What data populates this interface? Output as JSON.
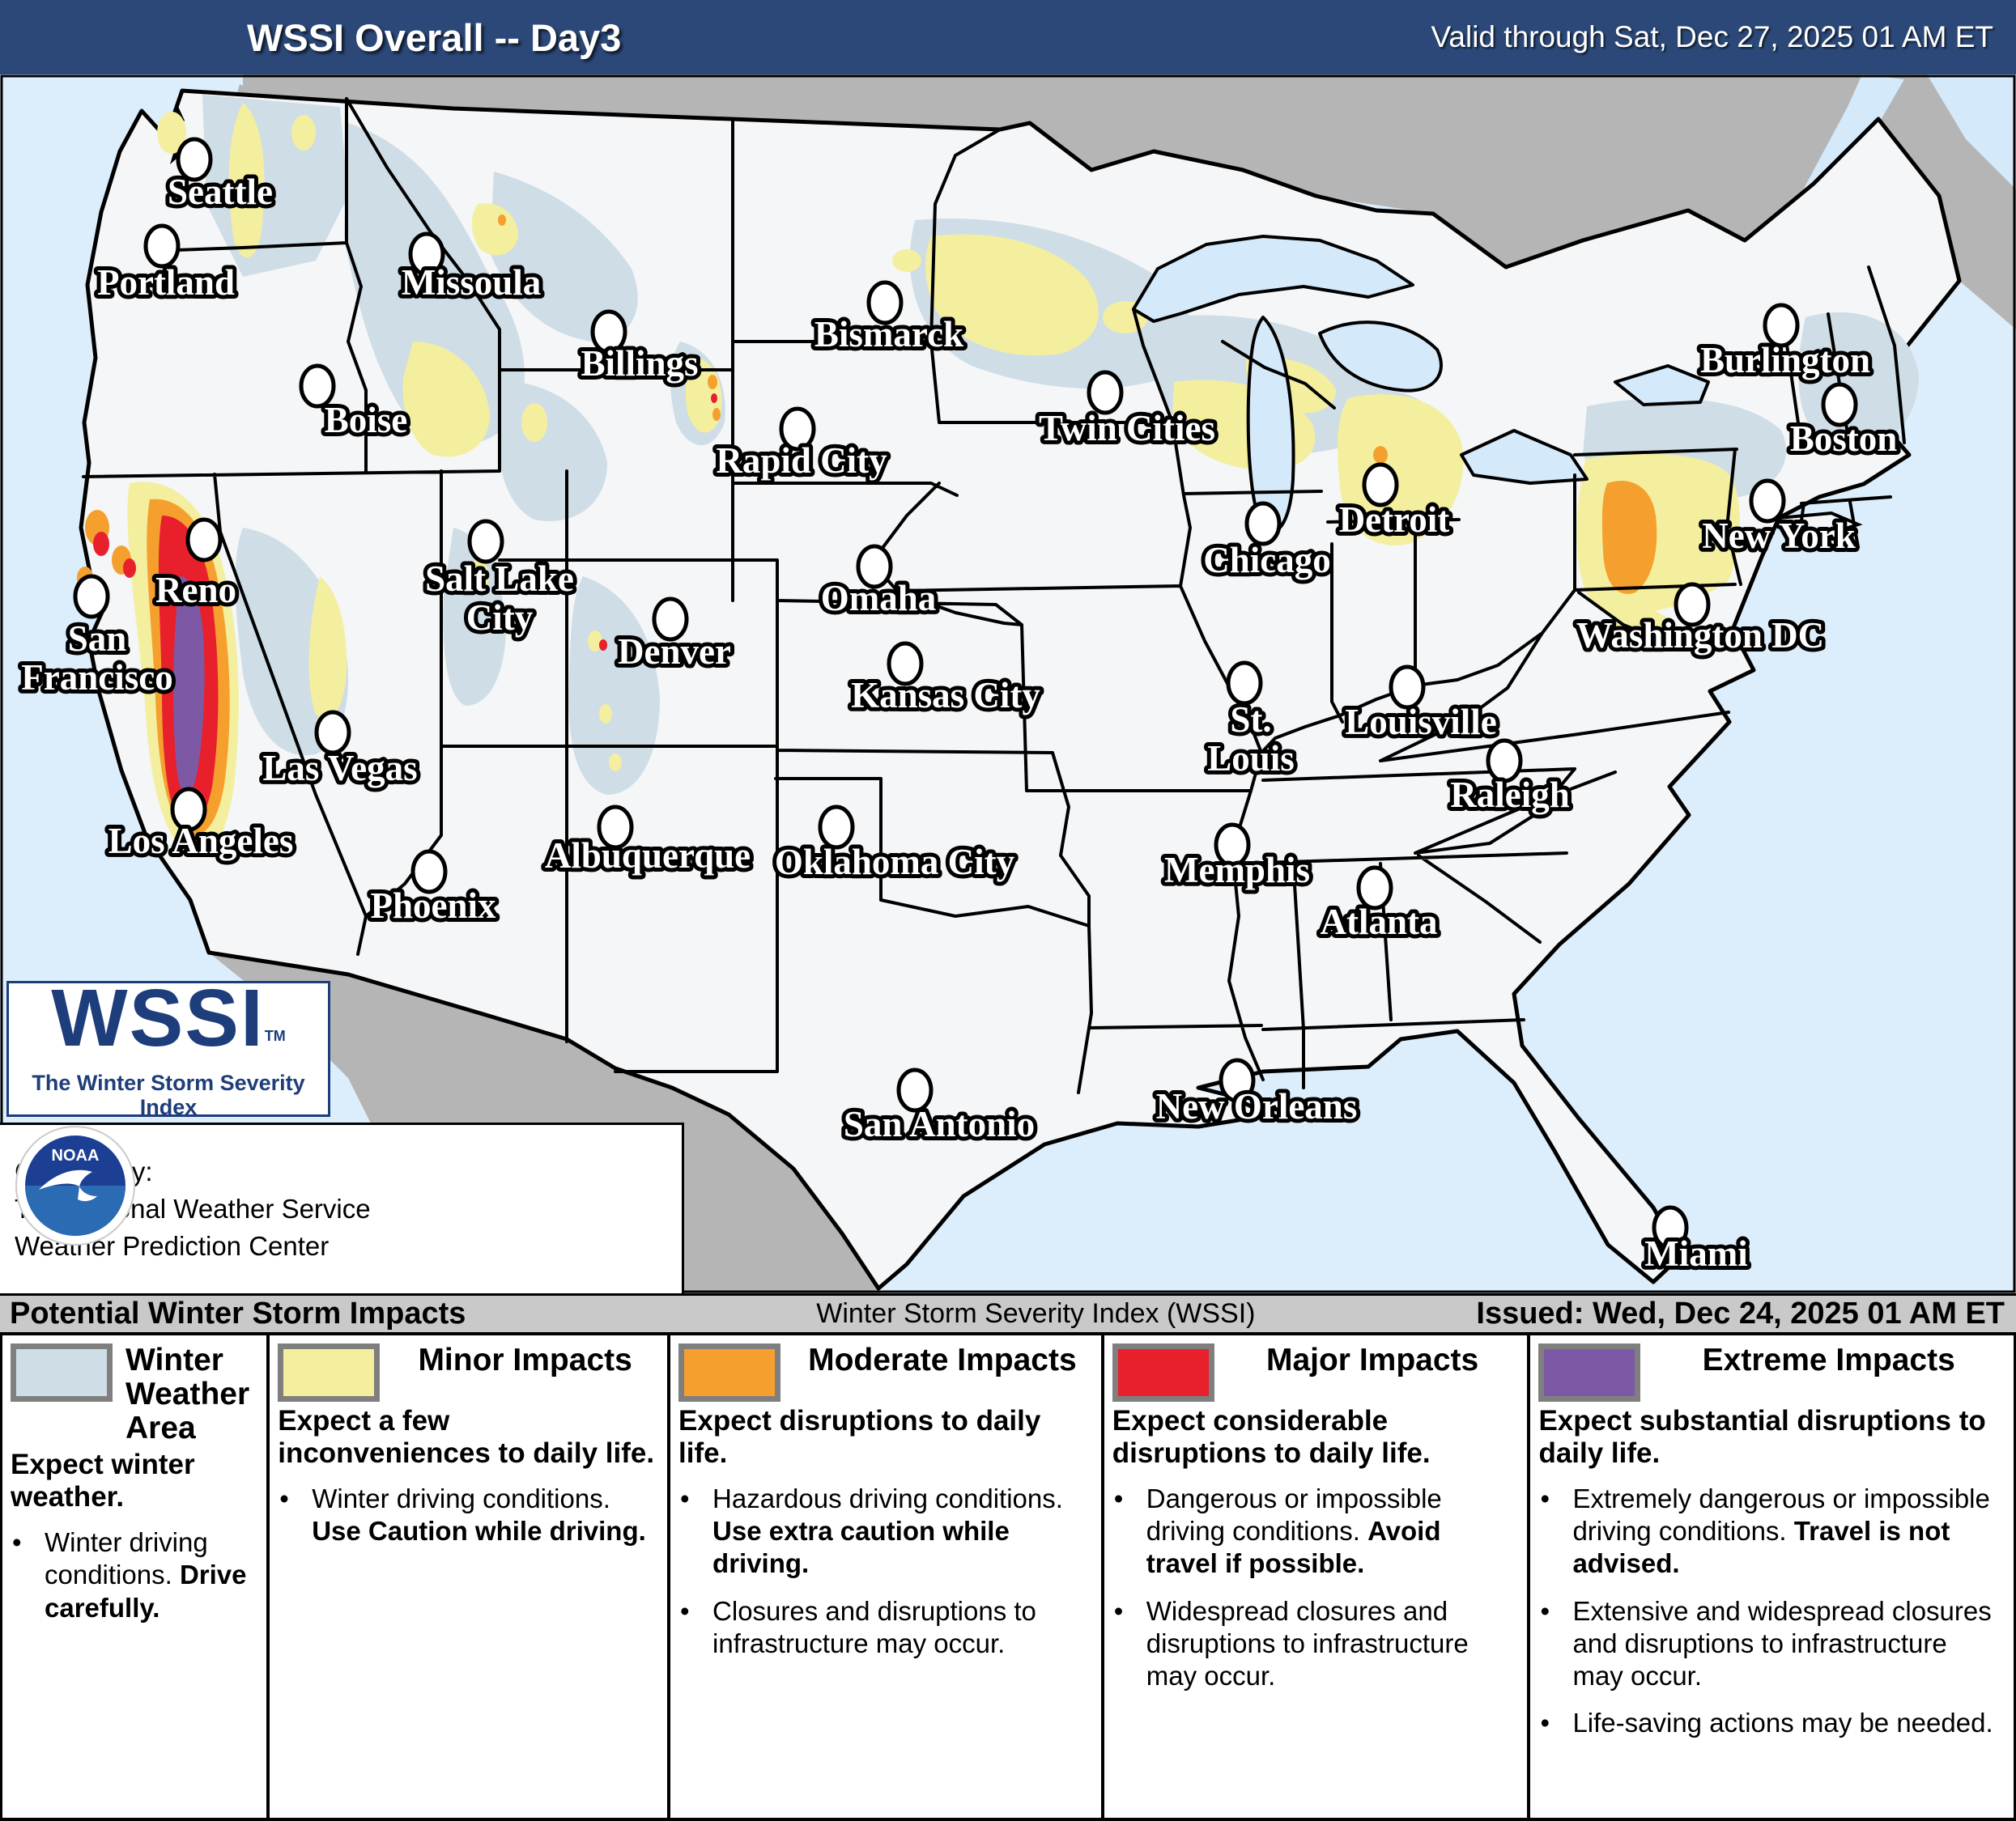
{
  "header": {
    "title": "WSSI Overall -- Day3",
    "valid": "Valid through Sat, Dec 27, 2025 01 AM ET"
  },
  "logo": {
    "name": "WSSI",
    "tm": "TM",
    "subtitle": "The Winter Storm Severity Index",
    "scale": [
      "#dcdcea",
      "#f4ef9f",
      "#f5a02e",
      "#e8202c",
      "#7d59a5"
    ]
  },
  "credit": {
    "line1": "Created by:",
    "line2": "The National Weather Service",
    "line3": "Weather Prediction Center",
    "nws_icon": "national-weather-service-seal",
    "noaa_icon": "noaa-seal",
    "noaa_text": "NOAA"
  },
  "footer": {
    "left": "Potential Winter Storm Impacts",
    "center": "Winter Storm Severity Index (WSSI)",
    "right": "Issued: Wed, Dec 24, 2025 01 AM ET"
  },
  "map": {
    "colors": {
      "water": "#dceefb",
      "foreign_land": "#b5b5b5",
      "us_land": "#f4f6f8",
      "lakes": "#d4e9fa",
      "winter_weather": "#cfdde6",
      "minor": "#f4ef9f",
      "moderate": "#f5a02e",
      "major": "#e8202c",
      "extreme": "#7d59a5"
    },
    "cities": [
      {
        "name": [
          "Seattle"
        ],
        "dot": [
          240,
          105
        ],
        "label": [
          272,
          160
        ]
      },
      {
        "name": [
          "Portland"
        ],
        "dot": [
          200,
          212
        ],
        "label": [
          205,
          272
        ]
      },
      {
        "name": [
          "Missoula"
        ],
        "dot": [
          527,
          222
        ],
        "label": [
          582,
          272
        ]
      },
      {
        "name": [
          "Billings"
        ],
        "dot": [
          752,
          318
        ],
        "label": [
          790,
          372
        ]
      },
      {
        "name": [
          "Bismarck"
        ],
        "dot": [
          1093,
          282
        ],
        "label": [
          1098,
          336
        ]
      },
      {
        "name": [
          "Boise"
        ],
        "dot": [
          392,
          385
        ],
        "label": [
          452,
          442
        ]
      },
      {
        "name": [
          "Rapid City"
        ],
        "dot": [
          985,
          438
        ],
        "label": [
          990,
          492
        ]
      },
      {
        "name": [
          "Twin Cities"
        ],
        "dot": [
          1365,
          393
        ],
        "label": [
          1392,
          452
        ]
      },
      {
        "name": [
          "Salt Lake",
          "City"
        ],
        "dot": [
          600,
          577
        ],
        "label": [
          617,
          638
        ]
      },
      {
        "name": [
          "Reno"
        ],
        "dot": [
          252,
          575
        ],
        "label": [
          242,
          652
        ]
      },
      {
        "name": [
          "San",
          "Francisco"
        ],
        "dot": [
          113,
          645
        ],
        "label": [
          120,
          712
        ]
      },
      {
        "name": [
          "Denver"
        ],
        "dot": [
          828,
          673
        ],
        "label": [
          833,
          728
        ]
      },
      {
        "name": [
          "Omaha"
        ],
        "dot": [
          1080,
          608
        ],
        "label": [
          1085,
          662
        ]
      },
      {
        "name": [
          "Kansas City"
        ],
        "dot": [
          1118,
          728
        ],
        "label": [
          1168,
          782
        ]
      },
      {
        "name": [
          "Chicago"
        ],
        "dot": [
          1560,
          555
        ],
        "label": [
          1565,
          615
        ]
      },
      {
        "name": [
          "Detroit"
        ],
        "dot": [
          1705,
          507
        ],
        "label": [
          1722,
          565
        ]
      },
      {
        "name": [
          "St.",
          "Louis"
        ],
        "dot": [
          1537,
          752
        ],
        "label": [
          1545,
          812
        ]
      },
      {
        "name": [
          "Louisville"
        ],
        "dot": [
          1738,
          757
        ],
        "label": [
          1755,
          815
        ]
      },
      {
        "name": [
          "Burlington"
        ],
        "dot": [
          2200,
          310
        ],
        "label": [
          2205,
          368
        ]
      },
      {
        "name": [
          "Boston"
        ],
        "dot": [
          2272,
          408
        ],
        "label": [
          2277,
          465
        ]
      },
      {
        "name": [
          "New York"
        ],
        "dot": [
          2183,
          527
        ],
        "label": [
          2197,
          585
        ]
      },
      {
        "name": [
          "Washington DC"
        ],
        "dot": [
          2090,
          655
        ],
        "label": [
          2100,
          708
        ]
      },
      {
        "name": [
          "Raleigh"
        ],
        "dot": [
          1858,
          848
        ],
        "label": [
          1865,
          905
        ]
      },
      {
        "name": [
          "Las Vegas"
        ],
        "dot": [
          411,
          813
        ],
        "label": [
          420,
          872
        ]
      },
      {
        "name": [
          "Los Angeles"
        ],
        "dot": [
          233,
          908
        ],
        "label": [
          248,
          962
        ]
      },
      {
        "name": [
          "Phoenix"
        ],
        "dot": [
          530,
          985
        ],
        "label": [
          535,
          1042
        ]
      },
      {
        "name": [
          "Albuquerque"
        ],
        "dot": [
          760,
          930
        ],
        "label": [
          800,
          980
        ]
      },
      {
        "name": [
          "Oklahoma City"
        ],
        "dot": [
          1033,
          930
        ],
        "label": [
          1105,
          988
        ]
      },
      {
        "name": [
          "Memphis"
        ],
        "dot": [
          1522,
          952
        ],
        "label": [
          1528,
          998
        ]
      },
      {
        "name": [
          "Atlanta"
        ],
        "dot": [
          1698,
          1005
        ],
        "label": [
          1703,
          1062
        ]
      },
      {
        "name": [
          "San Antonio"
        ],
        "dot": [
          1130,
          1255
        ],
        "label": [
          1160,
          1312
        ]
      },
      {
        "name": [
          "New Orleans"
        ],
        "dot": [
          1528,
          1243
        ],
        "label": [
          1552,
          1290
        ]
      },
      {
        "name": [
          "Miami"
        ],
        "dot": [
          2063,
          1425
        ],
        "label": [
          2095,
          1472
        ]
      }
    ]
  },
  "legend": {
    "widths": [
      331,
      496,
      537,
      528,
      598
    ],
    "columns": [
      {
        "id": "winter-weather",
        "heading": "Winter Weather Area",
        "swatch": "#cfdde6",
        "intro": "Expect winter weather.",
        "bullets": [
          [
            {
              "t": "Winter driving conditions. "
            },
            {
              "t": "Drive carefully.",
              "b": true
            }
          ]
        ]
      },
      {
        "id": "minor",
        "heading": "Minor Impacts",
        "swatch": "#f4ef9f",
        "intro": "Expect a few inconveniences to daily life.",
        "bullets": [
          [
            {
              "t": "Winter driving conditions. "
            },
            {
              "t": "Use Caution while driving.",
              "b": true
            }
          ]
        ]
      },
      {
        "id": "moderate",
        "heading": "Moderate Impacts",
        "swatch": "#f5a02e",
        "intro": "Expect disruptions to daily life.",
        "bullets": [
          [
            {
              "t": "Hazardous driving conditions. "
            },
            {
              "t": "Use extra caution while driving.",
              "b": true
            }
          ],
          [
            {
              "t": "Closures and disruptions to infrastructure may occur."
            }
          ]
        ]
      },
      {
        "id": "major",
        "heading": "Major Impacts",
        "swatch": "#e8202c",
        "intro": "Expect considerable disruptions to daily life.",
        "bullets": [
          [
            {
              "t": "Dangerous or impossible driving conditions. "
            },
            {
              "t": "Avoid travel if possible.",
              "b": true
            }
          ],
          [
            {
              "t": "Widespread closures and disruptions to infrastructure may occur."
            }
          ]
        ]
      },
      {
        "id": "extreme",
        "heading": "Extreme Impacts",
        "swatch": "#7d59a5",
        "intro": "Expect substantial disruptions to daily life.",
        "bullets": [
          [
            {
              "t": "Extremely dangerous or impossible driving conditions. "
            },
            {
              "t": "Travel is not advised.",
              "b": true
            }
          ],
          [
            {
              "t": "Extensive and widespread closures and disruptions to infrastructure may occur."
            }
          ],
          [
            {
              "t": "Life-saving actions may be needed."
            }
          ]
        ]
      }
    ]
  }
}
